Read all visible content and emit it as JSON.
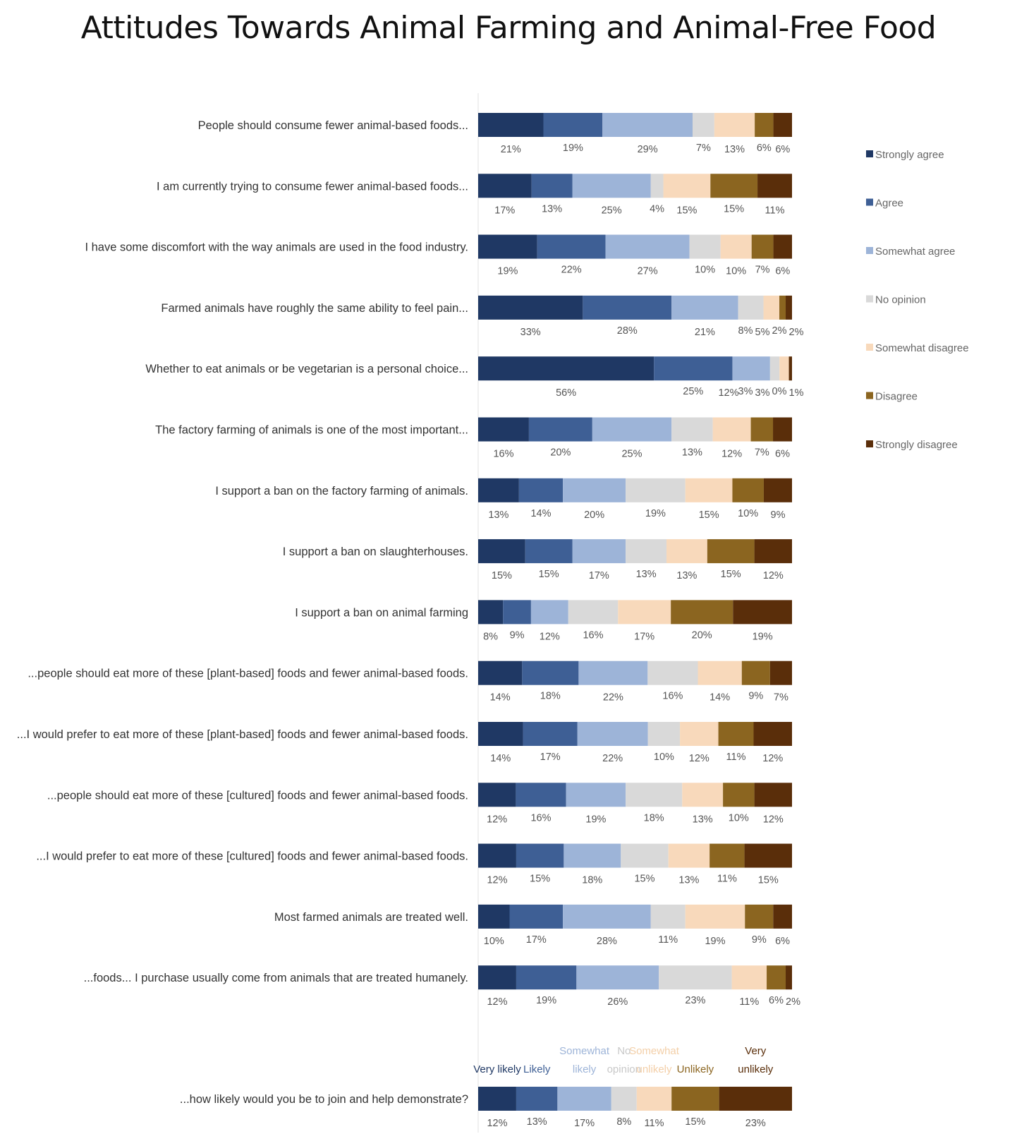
{
  "chart_data": {
    "type": "bar",
    "stacked": true,
    "orientation": "horizontal",
    "title": "Attitudes Towards Animal Farming and Animal-Free Food",
    "legend_position": "right",
    "series_names": [
      "Strongly agree",
      "Agree",
      "Somewhat agree",
      "No opinion",
      "Somewhat disagree",
      "Disagree",
      "Strongly disagree"
    ],
    "colors": [
      "#1f3864",
      "#3e5f95",
      "#9db4d8",
      "#d9d9d9",
      "#f8d9bb",
      "#8b6520",
      "#5a2e0a"
    ],
    "unit": "%",
    "rows": [
      {
        "label": "People should consume fewer animal-based foods...",
        "values": [
          21,
          19,
          29,
          7,
          13,
          6,
          6
        ]
      },
      {
        "label": "I am currently trying to consume fewer animal-based foods...",
        "values": [
          17,
          13,
          25,
          4,
          15,
          15,
          11
        ]
      },
      {
        "label": "I have some discomfort with the way animals are used in the food industry.",
        "values": [
          19,
          22,
          27,
          10,
          10,
          7,
          6
        ]
      },
      {
        "label": "Farmed animals have roughly the same ability to feel pain...",
        "values": [
          33,
          28,
          21,
          8,
          5,
          2,
          2
        ]
      },
      {
        "label": "Whether to eat animals or be vegetarian is a personal choice...",
        "values": [
          56,
          25,
          12,
          3,
          3,
          0,
          1
        ]
      },
      {
        "label": "The factory farming of animals is one of the most important...",
        "values": [
          16,
          20,
          25,
          13,
          12,
          7,
          6
        ]
      },
      {
        "label": "I support a ban on the factory farming of animals.",
        "values": [
          13,
          14,
          20,
          19,
          15,
          10,
          9
        ]
      },
      {
        "label": "I support a ban on slaughterhouses.",
        "values": [
          15,
          15,
          17,
          13,
          13,
          15,
          12
        ]
      },
      {
        "label": "I support a ban on animal farming",
        "values": [
          8,
          9,
          12,
          16,
          17,
          20,
          19
        ]
      },
      {
        "label": "...people should eat more of these [plant-based] foods and fewer animal-based foods.",
        "values": [
          14,
          18,
          22,
          16,
          14,
          9,
          7
        ]
      },
      {
        "label": "...I would prefer to eat more of these [plant-based] foods and fewer animal-based foods.",
        "values": [
          14,
          17,
          22,
          10,
          12,
          11,
          12
        ]
      },
      {
        "label": "...people should eat more of these [cultured] foods and fewer animal-based foods.",
        "values": [
          12,
          16,
          19,
          18,
          13,
          10,
          12
        ]
      },
      {
        "label": "...I would prefer to eat more of these [cultured] foods and fewer animal-based foods.",
        "values": [
          12,
          15,
          18,
          15,
          13,
          11,
          15
        ]
      },
      {
        "label": "Most farmed animals are treated well.",
        "values": [
          10,
          17,
          28,
          11,
          19,
          9,
          6
        ]
      },
      {
        "label": "...foods... I purchase usually come from animals that are treated humanely.",
        "values": [
          12,
          19,
          26,
          23,
          11,
          6,
          2
        ]
      }
    ],
    "likely_row": {
      "label": "...how likely would you be to join and help demonstrate?",
      "categories": [
        "Very likely",
        "Likely",
        "Somewhat likely",
        "No opinion",
        "Somewhat unlikely",
        "Unlikely",
        "Very unlikely"
      ],
      "values": [
        12,
        13,
        17,
        8,
        11,
        15,
        23
      ]
    }
  }
}
